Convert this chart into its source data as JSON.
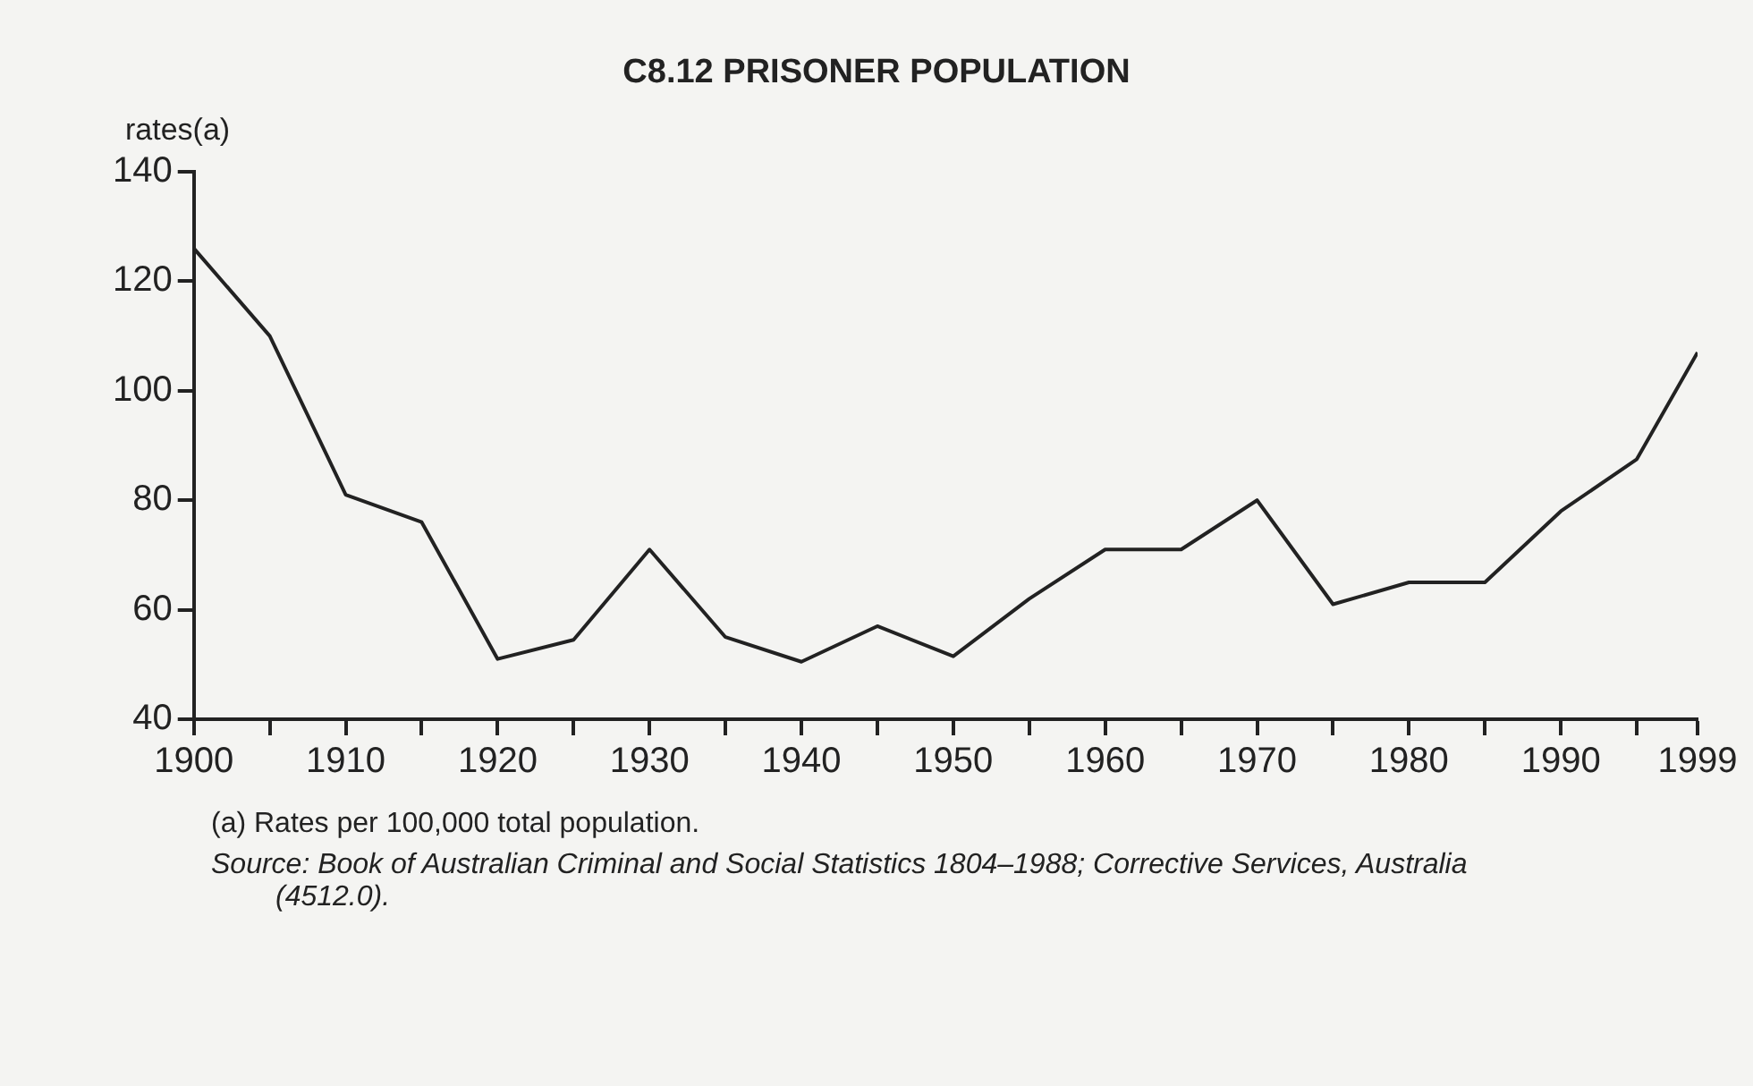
{
  "chart_data": {
    "type": "line",
    "title": "C8.12  PRISONER POPULATION",
    "ylabel": "rates(a)",
    "x": [
      1900,
      1905,
      1910,
      1915,
      1920,
      1925,
      1930,
      1935,
      1940,
      1945,
      1950,
      1955,
      1960,
      1965,
      1970,
      1975,
      1980,
      1985,
      1990,
      1995,
      1999
    ],
    "series": [
      {
        "color": "#222222",
        "values": [
          126,
          110,
          81,
          76,
          51,
          54.5,
          71,
          55,
          50.5,
          57,
          51.5,
          62,
          71,
          71,
          80,
          61,
          65,
          65,
          78,
          87.5,
          107
        ]
      }
    ],
    "xlim": [
      1900,
      1999
    ],
    "xticks": [
      1900,
      {
        "value": 1905,
        "label": null
      },
      1910,
      {
        "value": 1915,
        "label": null
      },
      1920,
      {
        "value": 1925,
        "label": null
      },
      1930,
      {
        "value": 1935,
        "label": null
      },
      1940,
      {
        "value": 1945,
        "label": null
      },
      1950,
      {
        "value": 1955,
        "label": null
      },
      1960,
      {
        "value": 1965,
        "label": null
      },
      1970,
      {
        "value": 1975,
        "label": null
      },
      1980,
      {
        "value": 1985,
        "label": null
      },
      1990,
      {
        "value": 1995,
        "label": null
      },
      1999
    ],
    "ylim": [
      40,
      140
    ],
    "yticks": [
      40,
      60,
      80,
      100,
      120,
      140
    ],
    "grid": false,
    "legend": false,
    "marker": "none",
    "line_style": "solid",
    "annotations": [
      "(a) Rates per 100,000 total population.",
      "Source: Book of Australian Criminal and Social Statistics 1804–1988; Corrective Services, Australia (4512.0)."
    ]
  }
}
